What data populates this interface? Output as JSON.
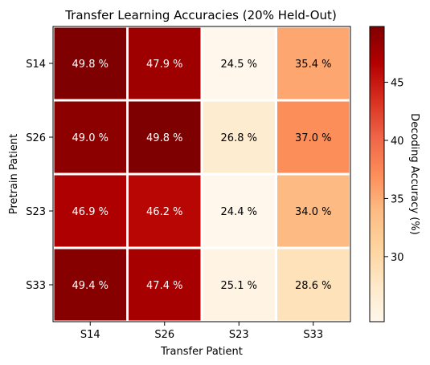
{
  "chart_data": {
    "type": "heatmap",
    "title": "Transfer Learning Accuracies (20% Held-Out)",
    "xlabel": "Transfer Patient",
    "ylabel": "Pretrain Patient",
    "x_categories": [
      "S14",
      "S26",
      "S23",
      "S33"
    ],
    "y_categories": [
      "S14",
      "S26",
      "S23",
      "S33"
    ],
    "values": [
      [
        49.8,
        47.9,
        24.5,
        35.4
      ],
      [
        49.0,
        49.8,
        26.8,
        37.0
      ],
      [
        46.9,
        46.2,
        24.4,
        34.0
      ],
      [
        49.4,
        47.4,
        25.1,
        28.6
      ]
    ],
    "cell_labels": [
      [
        "49.8 %",
        "47.9 %",
        "24.5 %",
        "35.4 %"
      ],
      [
        "49.0 %",
        "49.8 %",
        "26.8 %",
        "37.0 %"
      ],
      [
        "46.9 %",
        "46.2 %",
        "24.4 %",
        "34.0 %"
      ],
      [
        "49.4 %",
        "47.4 %",
        "25.1 %",
        "28.6 %"
      ]
    ],
    "colorbar": {
      "label": "Decoding Accuracy (%)",
      "range": [
        24.4,
        49.8
      ],
      "ticks": [
        30,
        35,
        40,
        45
      ],
      "tick_labels": [
        "30",
        "35",
        "40",
        "45"
      ],
      "colormap": "OrRd"
    },
    "colormap_stops": [
      "#fff7ec",
      "#fee8c8",
      "#fdd49e",
      "#fdbb84",
      "#fc8d59",
      "#ef6548",
      "#d7301f",
      "#b30000",
      "#7f0000"
    ],
    "grid": false
  }
}
